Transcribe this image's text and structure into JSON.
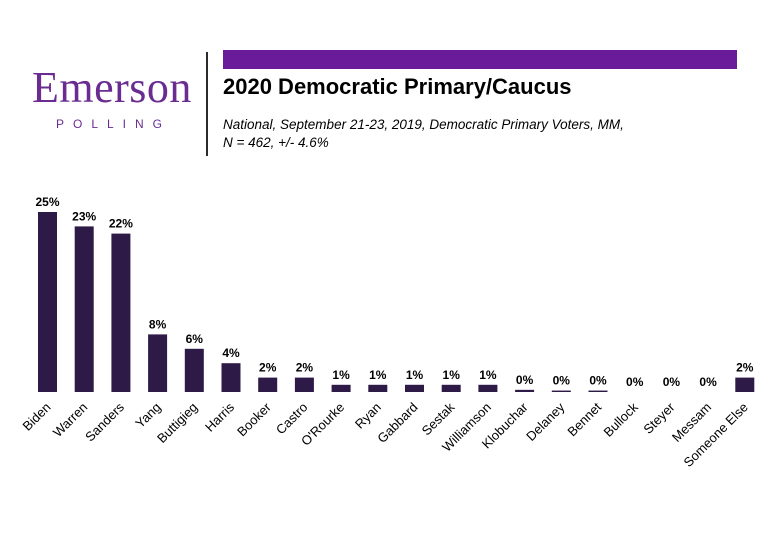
{
  "logo": {
    "name": "Emerson",
    "subtitle": "POLLING"
  },
  "accent_color": "#6a1b9a",
  "bar_color": "#2e1a47",
  "header": {
    "title": "2020 Democratic Primary/Caucus",
    "subtitle_line1": "National, September 21-23, 2019, Democratic Primary Voters, MM,",
    "subtitle_line2": "N = 462, +/- 4.6%"
  },
  "chart_data": {
    "type": "bar",
    "title": "2020 Democratic Primary/Caucus",
    "xlabel": "",
    "ylabel": "",
    "ylim": [
      0,
      25
    ],
    "grid": false,
    "categories": [
      "Biden",
      "Warren",
      "Sanders",
      "Yang",
      "Buttigieg",
      "Harris",
      "Booker",
      "Castro",
      "O'Rourke",
      "Ryan",
      "Gabbard",
      "Sestak",
      "Williamson",
      "Klobuchar",
      "Delaney",
      "Bennet",
      "Bullock",
      "Steyer",
      "Messam",
      "Someone Else"
    ],
    "values": [
      25,
      23,
      22,
      8,
      6,
      4,
      2,
      2,
      1,
      1,
      1,
      1,
      1,
      0.3,
      0.2,
      0.2,
      0,
      0,
      0,
      2
    ],
    "labels": [
      "25%",
      "23%",
      "22%",
      "8%",
      "6%",
      "4%",
      "2%",
      "2%",
      "1%",
      "1%",
      "1%",
      "1%",
      "1%",
      "0%",
      "0%",
      "0%",
      "0%",
      "0%",
      "0%",
      "2%"
    ]
  }
}
